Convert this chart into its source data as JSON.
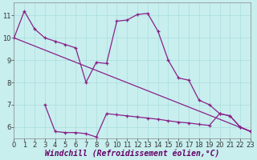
{
  "background_color": "#c8eeee",
  "line_color": "#882288",
  "grid_color": "#aadddd",
  "xlabel": "Windchill (Refroidissement éolien,°C)",
  "xlabel_fontsize": 7,
  "tick_fontsize": 6,
  "xlim": [
    0,
    23
  ],
  "ylim": [
    5.5,
    11.6
  ],
  "yticks": [
    6,
    7,
    8,
    9,
    10,
    11
  ],
  "xticks": [
    0,
    1,
    2,
    3,
    4,
    5,
    6,
    7,
    8,
    9,
    10,
    11,
    12,
    13,
    14,
    15,
    16,
    17,
    18,
    19,
    20,
    21,
    22,
    23
  ],
  "line1_x": [
    0,
    1,
    2,
    3,
    4,
    5,
    6,
    7,
    8,
    9,
    10,
    11,
    12,
    13,
    14,
    15,
    16,
    17,
    18,
    19,
    20,
    21,
    22,
    23
  ],
  "line1_y": [
    10.0,
    11.2,
    10.4,
    10.0,
    9.85,
    9.7,
    9.55,
    8.0,
    8.9,
    8.85,
    10.75,
    10.8,
    11.05,
    11.1,
    10.3,
    9.0,
    8.2,
    8.1,
    7.2,
    7.0,
    6.6,
    6.5,
    6.0,
    5.8
  ],
  "line2_x": [
    0,
    23
  ],
  "line2_y": [
    10.0,
    5.8
  ],
  "line3_x": [
    3,
    4,
    5,
    6,
    7,
    8,
    9,
    10,
    11,
    12,
    13,
    14,
    15,
    16,
    17,
    18,
    19,
    20,
    21,
    22,
    23
  ],
  "line3_y": [
    7.0,
    5.8,
    5.75,
    5.75,
    5.7,
    5.55,
    6.6,
    6.55,
    6.5,
    6.45,
    6.4,
    6.35,
    6.28,
    6.22,
    6.18,
    6.12,
    6.07,
    6.6,
    6.5,
    6.0,
    5.8
  ]
}
